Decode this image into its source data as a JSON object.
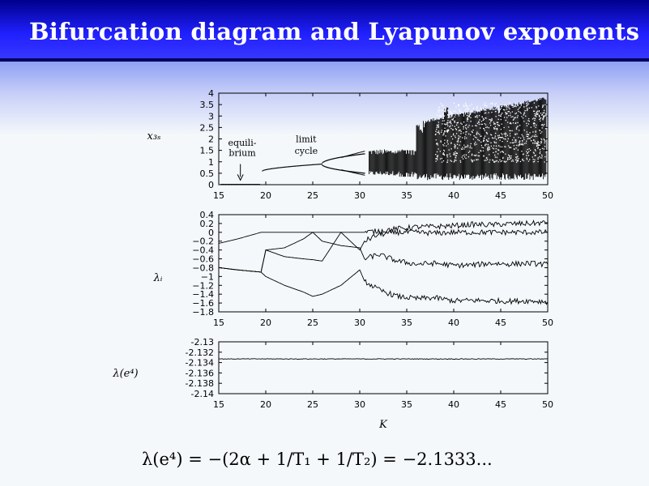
{
  "header": {
    "title": "Bifurcation diagram and Lyapunov exponents"
  },
  "formula": "λ(e⁴) = −(2α + 1/T₁ + 1/T₂) = −2.1333...",
  "colors": {
    "title_bar": "#1a1aff",
    "title_text": "#ffffff",
    "background": "#f4f8fb",
    "plot_ink": "#000000"
  },
  "chart_data": [
    {
      "type": "scatter",
      "ylabel": "x₃ₛ",
      "xlabel": "",
      "xlim": [
        15,
        50
      ],
      "ylim": [
        0,
        4
      ],
      "x_ticks": [
        "15",
        "20",
        "25",
        "30",
        "35",
        "40",
        "45",
        "50"
      ],
      "y_ticks": [
        "0",
        "0.5",
        "1",
        "1.5",
        "2",
        "2.5",
        "3",
        "3.5",
        "4"
      ],
      "annotations": [
        {
          "text": "equili-",
          "x": 17.5,
          "y": 1.7
        },
        {
          "text": "brium",
          "x": 17.5,
          "y": 1.25
        },
        {
          "text": "limit",
          "x": 24.3,
          "y": 1.85
        },
        {
          "text": "cycle",
          "x": 24.3,
          "y": 1.35
        }
      ],
      "arrow": {
        "x": 17.3,
        "y_from": 0.9,
        "y_to": 0.2
      },
      "regimes": [
        {
          "name": "equilibrium",
          "x_start": 15.2,
          "x_end": 19.4,
          "y": 0.0
        },
        {
          "name": "limit_cycle",
          "x_start": 19.6,
          "x_end": 25.9,
          "y_start": 0.6,
          "y_end": 0.9
        },
        {
          "name": "period_doubling",
          "x_start": 25.9,
          "x_end": 30.5,
          "upper": [
            0.9,
            1.35
          ],
          "lower": [
            0.9,
            0.5
          ]
        },
        {
          "name": "chaos",
          "x_start": 31.0,
          "x_end": 49.9,
          "y_min": 0.2,
          "y_max": 3.8
        }
      ],
      "sample_points": [
        {
          "x": 17,
          "y": 0
        },
        {
          "x": 20,
          "y": 0.65
        },
        {
          "x": 22,
          "y": 0.72
        },
        {
          "x": 24,
          "y": 0.8
        },
        {
          "x": 26,
          "y": 0.9
        },
        {
          "x": 28,
          "y": 1.2
        },
        {
          "x": 28,
          "y": 0.6
        },
        {
          "x": 30,
          "y": 1.3
        },
        {
          "x": 30,
          "y": 0.55
        },
        {
          "x": 35,
          "y": 1.4
        },
        {
          "x": 40,
          "y": 2.6
        },
        {
          "x": 45,
          "y": 3.0
        },
        {
          "x": 50,
          "y": 3.7
        }
      ]
    },
    {
      "type": "line",
      "ylabel": "λᵢ",
      "xlabel": "",
      "xlim": [
        15,
        50
      ],
      "ylim": [
        -1.8,
        0.4
      ],
      "x_ticks": [
        "15",
        "20",
        "25",
        "30",
        "35",
        "40",
        "45",
        "50"
      ],
      "y_ticks": [
        "0.4",
        "0.2",
        "0",
        "−0.2",
        "−0.4",
        "−0.6",
        "−0.8",
        "−1",
        "−1.2",
        "−1.4",
        "−1.6",
        "−1.8"
      ],
      "x": [
        15,
        17,
        19.5,
        20,
        22,
        24,
        25,
        26,
        28,
        30,
        30.5,
        32,
        34,
        36,
        38,
        40,
        42,
        44,
        46,
        48,
        50
      ],
      "series": [
        {
          "values": [
            -0.25,
            -0.15,
            0.0,
            0.0,
            0.0,
            0.0,
            0.0,
            0.0,
            0.0,
            0.0,
            0.0,
            0.03,
            0.08,
            0.12,
            0.13,
            0.15,
            0.18,
            0.17,
            0.19,
            0.2,
            0.22
          ]
        },
        {
          "values": [
            -0.8,
            -0.85,
            -0.9,
            -0.4,
            -0.55,
            -0.6,
            -0.62,
            -0.65,
            -0.0,
            -0.4,
            -0.2,
            -0.05,
            0.0,
            0.0,
            -0.02,
            0.0,
            0.0,
            0.0,
            0.0,
            0.0,
            0.0
          ]
        },
        {
          "values": [
            -0.8,
            -0.85,
            -0.9,
            -0.4,
            -0.35,
            -0.15,
            0.0,
            -0.2,
            -0.3,
            -0.35,
            -0.6,
            -0.5,
            -0.65,
            -0.72,
            -0.7,
            -0.75,
            -0.74,
            -0.7,
            -0.72,
            -0.7,
            -0.73
          ]
        },
        {
          "values": [
            -0.8,
            -0.85,
            -0.9,
            -1.0,
            -1.2,
            -1.35,
            -1.45,
            -1.4,
            -1.2,
            -0.85,
            -1.1,
            -1.3,
            -1.45,
            -1.5,
            -1.48,
            -1.55,
            -1.54,
            -1.55,
            -1.56,
            -1.55,
            -1.57
          ]
        }
      ]
    },
    {
      "type": "line",
      "ylabel": "λ(e⁴)",
      "xlabel": "K",
      "xlim": [
        15,
        50
      ],
      "ylim": [
        -2.14,
        -2.13
      ],
      "x_ticks": [
        "15",
        "20",
        "25",
        "30",
        "35",
        "40",
        "45",
        "50"
      ],
      "y_ticks": [
        "-2.13",
        "-2.132",
        "-2.134",
        "-2.136",
        "-2.138",
        "-2.14"
      ],
      "x": [
        15,
        20,
        25,
        30,
        35,
        40,
        45,
        50
      ],
      "series": [
        {
          "values": [
            -2.1333,
            -2.1333,
            -2.1333,
            -2.1333,
            -2.1333,
            -2.1333,
            -2.1333,
            -2.1333
          ]
        }
      ]
    }
  ]
}
